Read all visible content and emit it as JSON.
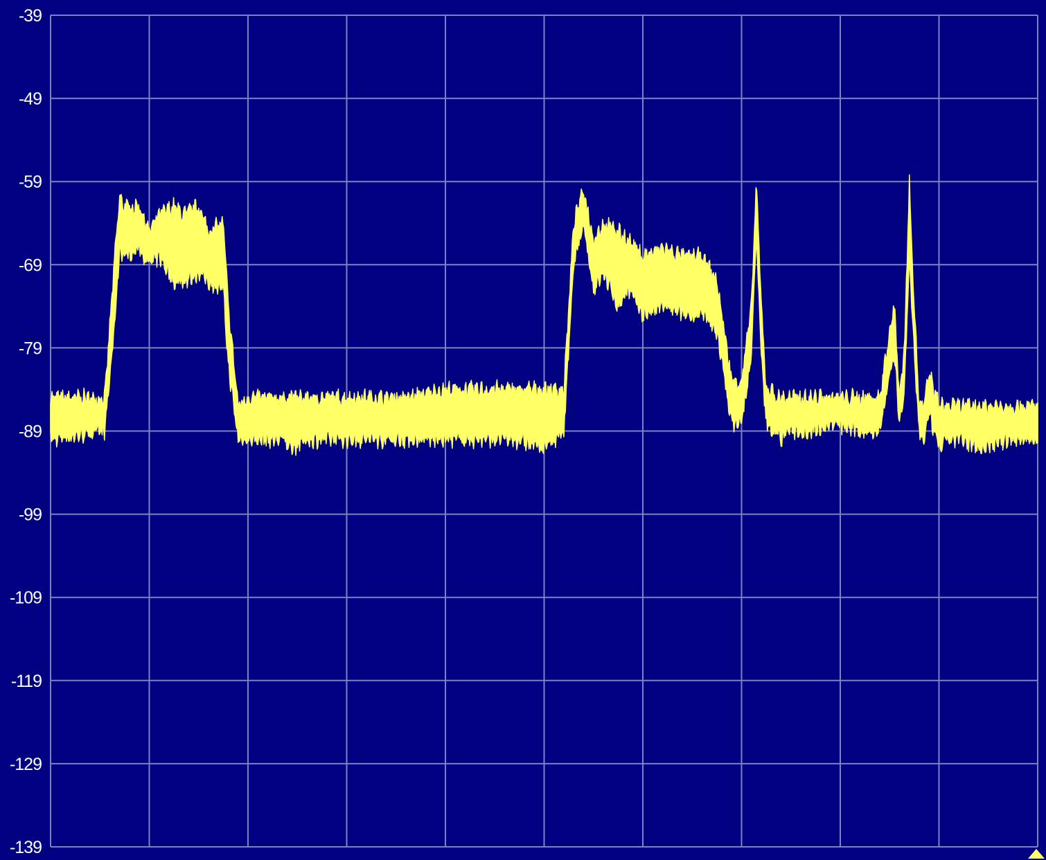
{
  "colors": {
    "background": "#000080",
    "grid": "#7f7fc8",
    "trace": "#ffff66",
    "label": "#ffffff"
  },
  "chart_data": {
    "type": "line",
    "title": "",
    "xlabel": "",
    "ylabel": "",
    "ylim": [
      -139,
      -39
    ],
    "y_ticks": [
      "-39",
      "-49",
      "-59",
      "-69",
      "-79",
      "-89",
      "-99",
      "-109",
      "-119",
      "-129",
      "-139"
    ],
    "x_divisions": 10,
    "grid": true,
    "trace_style": "noisy band (min/max envelope)",
    "series": [
      {
        "x": [
          0,
          0.055,
          0.065,
          0.07,
          0.075,
          0.09,
          0.1,
          0.11,
          0.125,
          0.135,
          0.15,
          0.16,
          0.175,
          0.18,
          0.19,
          0.2,
          0.22,
          0.235,
          0.245,
          0.26,
          0.27,
          0.28,
          0.29,
          0.3,
          0.32,
          0.335,
          0.36,
          0.4,
          0.44,
          0.47,
          0.5,
          0.52,
          0.53,
          0.54,
          0.55,
          0.56,
          0.575,
          0.585,
          0.6,
          0.62,
          0.64,
          0.66,
          0.675,
          0.69,
          0.7,
          0.71,
          0.715,
          0.72,
          0.725,
          0.73,
          0.735,
          0.74,
          0.745,
          0.75,
          0.76,
          0.77,
          0.79,
          0.82,
          0.84,
          0.85,
          0.855,
          0.86,
          0.865,
          0.87,
          0.875,
          0.88,
          0.885,
          0.89,
          0.9,
          0.91,
          0.92,
          0.94,
          0.97,
          1.0
        ],
        "y_low": [
          -90,
          -89,
          -76,
          -67,
          -68,
          -67,
          -69,
          -68,
          -71,
          -71,
          -70,
          -71,
          -72,
          -81,
          -90,
          -90,
          -90,
          -90,
          -91,
          -90,
          -90,
          -90,
          -90,
          -90,
          -90,
          -90,
          -90,
          -90,
          -90,
          -90,
          -91,
          -89,
          -69,
          -64,
          -72,
          -70,
          -74,
          -72,
          -75,
          -74,
          -75,
          -75,
          -77,
          -88,
          -88,
          -80,
          -65,
          -80,
          -88,
          -89,
          -89,
          -90,
          -89,
          -89,
          -89,
          -89,
          -88,
          -89,
          -89,
          -82,
          -80,
          -88,
          -84,
          -68,
          -80,
          -89,
          -90,
          -87,
          -91,
          -90,
          -90,
          -91,
          -90,
          -90
        ],
        "y_high": [
          -85,
          -85,
          -68,
          -61,
          -62,
          -62,
          -65,
          -63,
          -62,
          -63,
          -62,
          -65,
          -64,
          -74,
          -86,
          -85,
          -85,
          -85,
          -85,
          -85,
          -85,
          -85,
          -85,
          -85,
          -85,
          -85,
          -85,
          -84,
          -84,
          -84,
          -84,
          -84,
          -64,
          -60,
          -66,
          -64,
          -65,
          -66,
          -68,
          -67,
          -68,
          -68,
          -71,
          -83,
          -83,
          -74,
          -59,
          -74,
          -84,
          -84,
          -85,
          -85,
          -85,
          -85,
          -85,
          -85,
          -85,
          -85,
          -85,
          -77,
          -74,
          -85,
          -79,
          -59,
          -74,
          -86,
          -86,
          -82,
          -86,
          -86,
          -86,
          -86,
          -86,
          -86
        ]
      }
    ]
  }
}
